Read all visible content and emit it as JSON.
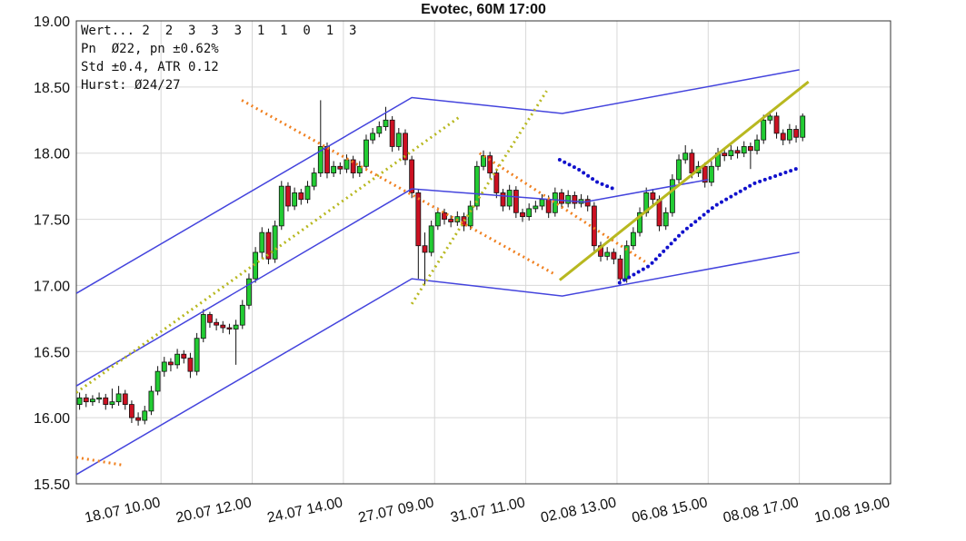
{
  "chart_data": {
    "type": "candlestick",
    "title": "Evotec, 60M 17:00",
    "info": [
      "Wert... 2  2  3  3  3  1  1  0  1  3",
      "Pn  Ø22, pn ±0.62%",
      "Std ±0.4, ATR 0.12",
      "Hurst: Ø24/27"
    ],
    "up_color": "#22cc33",
    "down_color": "#cc1122",
    "xlim": [
      0,
      125
    ],
    "ylim": [
      15.5,
      19.0
    ],
    "yticks": [
      {
        "value": 15.5,
        "label": "15.50"
      },
      {
        "value": 16,
        "label": "16.00"
      },
      {
        "value": 16.5,
        "label": "16.50"
      },
      {
        "value": 17,
        "label": "17.00"
      },
      {
        "value": 17.5,
        "label": "17.50"
      },
      {
        "value": 18,
        "label": "18.00"
      },
      {
        "value": 18.5,
        "label": "18.50"
      },
      {
        "value": 19,
        "label": "19.00"
      }
    ],
    "xticks": [
      {
        "value": 13,
        "label": "18.07 10.00"
      },
      {
        "value": 27,
        "label": "20.07 12.00"
      },
      {
        "value": 41,
        "label": "24.07 14.00"
      },
      {
        "value": 55,
        "label": "27.07 09.00"
      },
      {
        "value": 69,
        "label": "31.07 11.00"
      },
      {
        "value": 83,
        "label": "02.08 13.00"
      },
      {
        "value": 97,
        "label": "06.08 15.00"
      },
      {
        "value": 111,
        "label": "08.08 17.00"
      },
      {
        "value": 125,
        "label": "10.08 19.00"
      }
    ],
    "grid": true,
    "candles": [
      [
        16.1,
        16.19,
        16.06,
        16.15
      ],
      [
        16.15,
        16.18,
        16.08,
        16.12
      ],
      [
        16.12,
        16.17,
        16.09,
        16.14
      ],
      [
        16.14,
        16.19,
        16.11,
        16.15
      ],
      [
        16.15,
        16.18,
        16.06,
        16.1
      ],
      [
        16.1,
        16.22,
        16.07,
        16.12
      ],
      [
        16.12,
        16.24,
        16.09,
        16.18
      ],
      [
        16.18,
        16.21,
        16.06,
        16.1
      ],
      [
        16.1,
        16.13,
        15.96,
        16.0
      ],
      [
        16.0,
        16.04,
        15.94,
        15.98
      ],
      [
        15.98,
        16.09,
        15.95,
        16.05
      ],
      [
        16.05,
        16.24,
        16.02,
        16.2
      ],
      [
        16.2,
        16.39,
        16.17,
        16.35
      ],
      [
        16.35,
        16.46,
        16.31,
        16.42
      ],
      [
        16.42,
        16.45,
        16.35,
        16.4
      ],
      [
        16.4,
        16.52,
        16.37,
        16.48
      ],
      [
        16.48,
        16.51,
        16.41,
        16.45
      ],
      [
        16.45,
        16.49,
        16.3,
        16.35
      ],
      [
        16.35,
        16.64,
        16.32,
        16.6
      ],
      [
        16.6,
        16.82,
        16.57,
        16.78
      ],
      [
        16.78,
        16.8,
        16.68,
        16.72
      ],
      [
        16.72,
        16.75,
        16.66,
        16.7
      ],
      [
        16.7,
        16.73,
        16.64,
        16.68
      ],
      [
        16.68,
        16.71,
        16.63,
        16.67
      ],
      [
        16.67,
        16.74,
        16.4,
        16.7
      ],
      [
        16.7,
        16.89,
        16.67,
        16.85
      ],
      [
        16.85,
        17.09,
        16.82,
        17.05
      ],
      [
        17.05,
        17.29,
        17.02,
        17.25
      ],
      [
        17.25,
        17.44,
        17.2,
        17.4
      ],
      [
        17.4,
        17.43,
        17.16,
        17.2
      ],
      [
        17.2,
        17.49,
        17.17,
        17.45
      ],
      [
        17.45,
        17.79,
        17.42,
        17.75
      ],
      [
        17.75,
        17.78,
        17.56,
        17.6
      ],
      [
        17.6,
        17.74,
        17.57,
        17.7
      ],
      [
        17.7,
        17.73,
        17.61,
        17.65
      ],
      [
        17.65,
        17.79,
        17.62,
        17.75
      ],
      [
        17.75,
        17.89,
        17.72,
        17.85
      ],
      [
        17.85,
        18.4,
        17.82,
        18.05
      ],
      [
        18.05,
        18.08,
        17.81,
        17.85
      ],
      [
        17.85,
        17.94,
        17.82,
        17.9
      ],
      [
        17.9,
        17.93,
        17.84,
        17.88
      ],
      [
        17.88,
        17.99,
        17.85,
        17.95
      ],
      [
        17.95,
        17.98,
        17.81,
        17.85
      ],
      [
        17.85,
        17.94,
        17.82,
        17.9
      ],
      [
        17.9,
        18.14,
        17.87,
        18.1
      ],
      [
        18.1,
        18.19,
        18.07,
        18.15
      ],
      [
        18.15,
        18.24,
        18.12,
        18.2
      ],
      [
        18.2,
        18.35,
        18.17,
        18.25
      ],
      [
        18.25,
        18.28,
        18.01,
        18.05
      ],
      [
        18.05,
        18.19,
        18.02,
        18.15
      ],
      [
        18.15,
        18.18,
        17.91,
        17.95
      ],
      [
        17.95,
        17.98,
        17.66,
        17.7
      ],
      [
        17.7,
        17.73,
        17.05,
        17.3
      ],
      [
        17.3,
        17.4,
        17.0,
        17.25
      ],
      [
        17.25,
        17.49,
        17.22,
        17.45
      ],
      [
        17.45,
        17.59,
        17.42,
        17.55
      ],
      [
        17.55,
        17.58,
        17.46,
        17.5
      ],
      [
        17.5,
        17.53,
        17.44,
        17.48
      ],
      [
        17.48,
        17.56,
        17.45,
        17.52
      ],
      [
        17.52,
        17.55,
        17.41,
        17.45
      ],
      [
        17.45,
        17.64,
        17.42,
        17.6
      ],
      [
        17.6,
        17.94,
        17.57,
        17.9
      ],
      [
        17.9,
        18.02,
        17.87,
        17.98
      ],
      [
        17.98,
        18.01,
        17.81,
        17.85
      ],
      [
        17.85,
        17.88,
        17.66,
        17.7
      ],
      [
        17.7,
        17.73,
        17.56,
        17.6
      ],
      [
        17.6,
        17.76,
        17.57,
        17.72
      ],
      [
        17.72,
        17.75,
        17.51,
        17.55
      ],
      [
        17.55,
        17.58,
        17.48,
        17.52
      ],
      [
        17.52,
        17.62,
        17.49,
        17.58
      ],
      [
        17.58,
        17.64,
        17.55,
        17.6
      ],
      [
        17.6,
        17.69,
        17.57,
        17.65
      ],
      [
        17.65,
        17.68,
        17.51,
        17.55
      ],
      [
        17.55,
        17.74,
        17.52,
        17.7
      ],
      [
        17.7,
        17.73,
        17.58,
        17.62
      ],
      [
        17.62,
        17.72,
        17.59,
        17.68
      ],
      [
        17.68,
        17.71,
        17.58,
        17.62
      ],
      [
        17.62,
        17.69,
        17.59,
        17.65
      ],
      [
        17.65,
        17.68,
        17.56,
        17.6
      ],
      [
        17.6,
        17.63,
        17.26,
        17.3
      ],
      [
        17.3,
        17.33,
        17.18,
        17.22
      ],
      [
        17.22,
        17.29,
        17.19,
        17.25
      ],
      [
        17.25,
        17.28,
        17.16,
        17.2
      ],
      [
        17.2,
        17.23,
        17.01,
        17.05
      ],
      [
        17.05,
        17.34,
        17.02,
        17.3
      ],
      [
        17.3,
        17.44,
        17.27,
        17.4
      ],
      [
        17.4,
        17.59,
        17.37,
        17.55
      ],
      [
        17.55,
        17.74,
        17.52,
        17.7
      ],
      [
        17.7,
        17.73,
        17.61,
        17.65
      ],
      [
        17.65,
        17.68,
        17.41,
        17.45
      ],
      [
        17.45,
        17.59,
        17.42,
        17.55
      ],
      [
        17.55,
        17.84,
        17.52,
        17.8
      ],
      [
        17.8,
        17.99,
        17.77,
        17.95
      ],
      [
        17.95,
        18.06,
        17.92,
        18.0
      ],
      [
        18.0,
        18.03,
        17.81,
        17.85
      ],
      [
        17.85,
        17.94,
        17.82,
        17.9
      ],
      [
        17.9,
        17.93,
        17.74,
        17.78
      ],
      [
        17.78,
        17.94,
        17.75,
        17.9
      ],
      [
        17.9,
        18.04,
        17.87,
        18.0
      ],
      [
        18.0,
        18.03,
        17.94,
        17.98
      ],
      [
        17.98,
        18.06,
        17.95,
        18.02
      ],
      [
        18.02,
        18.05,
        17.96,
        18.0
      ],
      [
        18.0,
        18.09,
        17.97,
        18.05
      ],
      [
        18.05,
        18.08,
        17.88,
        18.02
      ],
      [
        18.02,
        18.14,
        17.99,
        18.1
      ],
      [
        18.1,
        18.29,
        18.07,
        18.25
      ],
      [
        18.25,
        18.32,
        18.22,
        18.28
      ],
      [
        18.28,
        18.31,
        18.11,
        18.15
      ],
      [
        18.15,
        18.18,
        18.06,
        18.1
      ],
      [
        18.1,
        18.22,
        18.07,
        18.18
      ],
      [
        18.18,
        18.21,
        18.08,
        18.12
      ],
      [
        18.12,
        18.3,
        18.09,
        18.28
      ]
    ],
    "overlays": [
      {
        "color": "#4444dd",
        "style": "solid",
        "x": [
          0,
          51.5,
          74.6,
          111
        ],
        "y": [
          16.94,
          18.42,
          18.3,
          18.63
        ]
      },
      {
        "color": "#4444dd",
        "style": "solid",
        "x": [
          0,
          51.5,
          78,
          97
        ],
        "y": [
          16.24,
          17.73,
          17.63,
          17.8
        ]
      },
      {
        "color": "#4444dd",
        "style": "solid",
        "x": [
          0,
          51.5,
          74.6,
          111
        ],
        "y": [
          15.57,
          17.05,
          16.92,
          17.25
        ]
      },
      {
        "color": "#f08020",
        "style": "dotted",
        "x": [
          25.4,
          73.6
        ],
        "y": [
          18.4,
          17.08
        ]
      },
      {
        "color": "#f08020",
        "style": "dotted",
        "x": [
          0,
          7.3
        ],
        "y": [
          15.7,
          15.64
        ]
      },
      {
        "color": "#f08020",
        "style": "dotted",
        "x": [
          61.9,
          87.3
        ],
        "y": [
          18.0,
          17.18
        ]
      },
      {
        "color": "#b8b820",
        "style": "dotted",
        "x": [
          0,
          59
        ],
        "y": [
          16.19,
          18.28
        ]
      },
      {
        "color": "#b8b820",
        "style": "dotted",
        "x": [
          51.5,
          72.2
        ],
        "y": [
          16.86,
          18.47
        ]
      },
      {
        "color": "#b8b820",
        "style": "solid",
        "x": [
          74.2,
          112.4
        ],
        "y": [
          17.04,
          18.54
        ]
      },
      {
        "color": "#1111cc",
        "style": "dots",
        "x": [
          74.2,
          77,
          80,
          83
        ],
        "y": [
          17.95,
          17.88,
          17.78,
          17.72
        ]
      },
      {
        "color": "#1111cc",
        "style": "dots",
        "x": [
          83.4,
          88,
          93,
          98,
          104,
          111
        ],
        "y": [
          17.02,
          17.15,
          17.4,
          17.6,
          17.77,
          17.89
        ]
      }
    ]
  }
}
